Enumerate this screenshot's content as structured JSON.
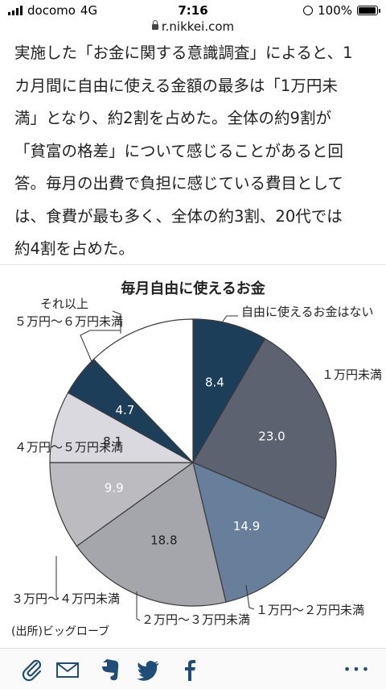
{
  "status_bar": {
    "carrier": "docomo",
    "network": "4G",
    "time": "7:16",
    "battery": "100%",
    "battery_level": 1.0
  },
  "browser": {
    "url": "r.nikkei.com"
  },
  "article": {
    "lines": [
      "実施した「お金に関する意識調査」によると、1",
      "カ月間に自由に使える金額の最多は「1万円未",
      "満」となり、約2割を占めた。全体の約9割が",
      "「貧富の格差」について感じることがあると回",
      "答。毎月の出費で負担に感じている費目として",
      "は、食費が最も多く、全体の約3割、20代では",
      "約4割を占めた。"
    ]
  },
  "chart_data": {
    "type": "pie",
    "title": "毎月自由に使えるお金",
    "categories": [
      "自由に使えるお金はない",
      "１万円未満",
      "１万円～２万円未満",
      "２万円～３万円未満",
      "３万円～４万円未満",
      "４万円～５万円未満",
      "５万円～６万円未満",
      "それ以上"
    ],
    "values": [
      8.4,
      23.0,
      14.9,
      18.8,
      9.9,
      8.1,
      4.7,
      12.2
    ],
    "value_labels": [
      "8.4",
      "23.0",
      "14.9",
      "18.8",
      "9.9",
      "8.1",
      "4.7",
      ""
    ],
    "colors": [
      "#1d3e58",
      "#5d6270",
      "#677f9a",
      "#a5a6ac",
      "#bcbcc0",
      "#d9d9df",
      "#1d3e58",
      "#ffffff"
    ],
    "label_colors": [
      "#ffffff",
      "#ffffff",
      "#ffffff",
      "#222222",
      "#ffffff",
      "#222222",
      "#ffffff",
      "#222222"
    ],
    "start_angle_deg": 0,
    "direction": "clockwise",
    "source": "(出所)ビッグローブ"
  },
  "toolbar": {
    "items": [
      "attach-icon",
      "mail-icon",
      "evernote-icon",
      "twitter-icon",
      "facebook-icon",
      "more-icon"
    ],
    "more_label": "•••"
  },
  "colors": {
    "text": "#222222",
    "outline": "#3a3a3a"
  }
}
